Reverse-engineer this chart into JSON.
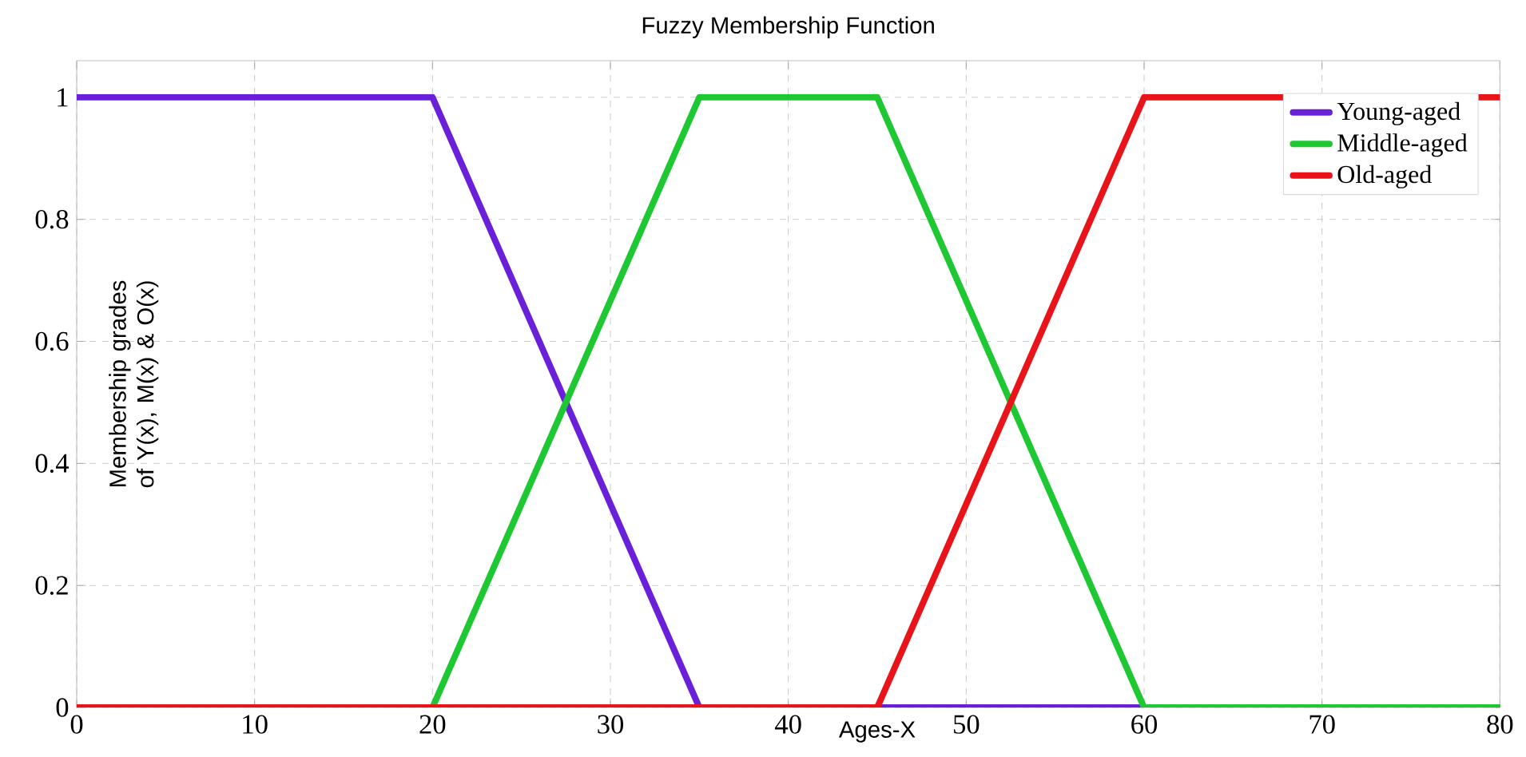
{
  "chart_data": {
    "type": "line",
    "title": "Fuzzy Membership Function",
    "xlabel": "Ages-X",
    "ylabel": "Membership grades of Y(x), M(x) & O(x)",
    "xlim": [
      0,
      80
    ],
    "xticks": [
      0,
      10,
      20,
      30,
      40,
      50,
      60,
      70,
      80
    ],
    "ylim": [
      0,
      1.06
    ],
    "yticks": [
      0,
      0.2,
      0.4,
      0.6,
      0.8,
      1
    ],
    "grid": true,
    "legend": "top right",
    "line_style": "solid",
    "marker": "none",
    "series": [
      {
        "name": "Young-aged",
        "color": "#6a1fd8",
        "x": [
          0,
          20,
          35,
          80
        ],
        "values": [
          1,
          1,
          0,
          0
        ]
      },
      {
        "name": "Middle-aged",
        "color": "#1ec832",
        "x": [
          0,
          20,
          35,
          45,
          60,
          80
        ],
        "values": [
          0,
          0,
          1,
          1,
          0,
          0
        ]
      },
      {
        "name": "Old-aged",
        "color": "#e8141a",
        "x": [
          0,
          45,
          60,
          80
        ],
        "values": [
          0,
          0,
          1,
          1
        ]
      }
    ]
  }
}
